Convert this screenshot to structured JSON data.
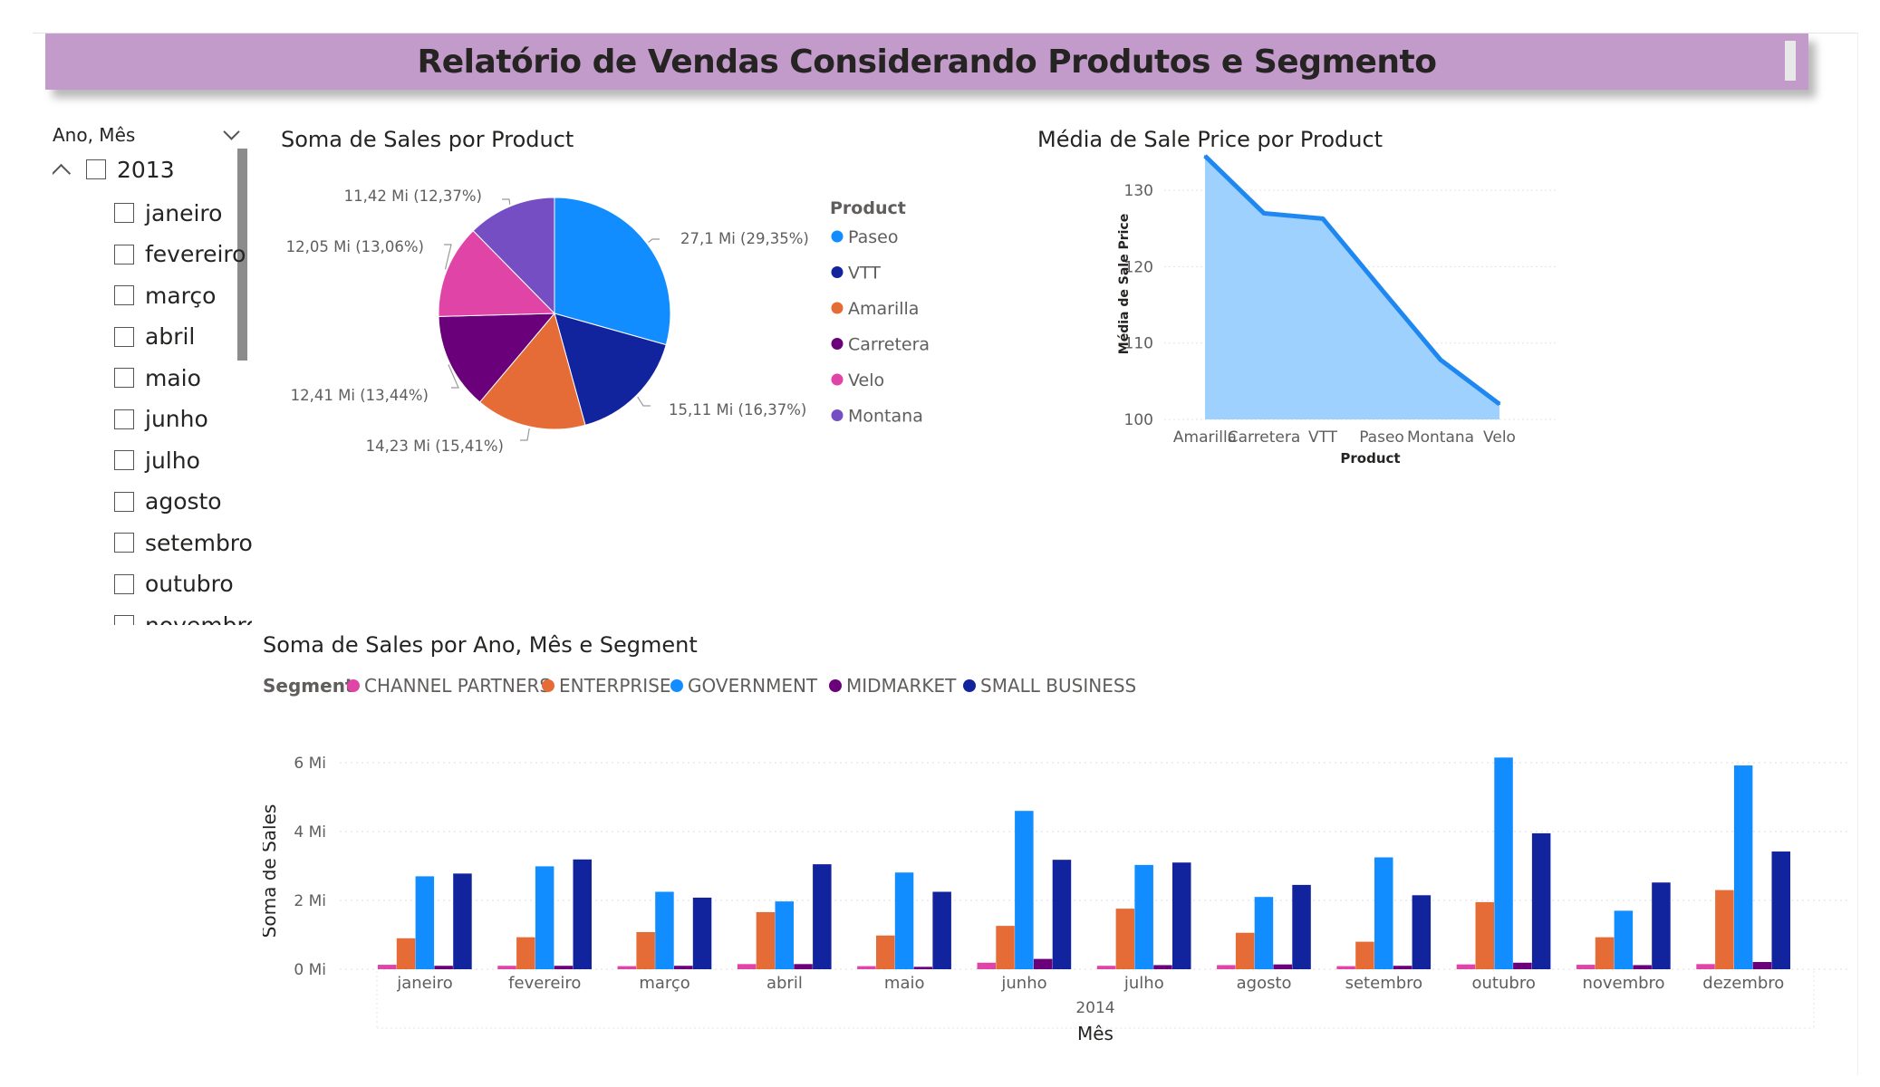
{
  "report_title": "Relatório de Vendas Considerando Produtos e Segmento",
  "colors": {
    "banner": "#c39bcb",
    "paseo": "#118dff",
    "vtt": "#12239e",
    "amarilla": "#e66c37",
    "carretera": "#6b007b",
    "velo": "#e044a7",
    "montana": "#744ec2",
    "area_fill": "#9fd1ff",
    "area_line": "#1e88f0"
  },
  "slicer": {
    "title": "Ano, Mês",
    "year": "2013",
    "months": [
      "janeiro",
      "fevereiro",
      "março",
      "abril",
      "maio",
      "junho",
      "julho",
      "agosto",
      "setembro",
      "outubro",
      "novembro"
    ]
  },
  "pie": {
    "title": "Soma de Sales por Product",
    "legend_title": "Product"
  },
  "area": {
    "title": "Média de Sale Price por Product"
  },
  "bars": {
    "title": "Soma de Sales por Ano, Mês e Segment",
    "legend_title": "Segment",
    "year_label": "2014"
  },
  "chart_data": [
    {
      "type": "pie",
      "title": "Soma de Sales por Product",
      "legend_title": "Product",
      "slices": [
        {
          "name": "Paseo",
          "value": 27.1,
          "label": "27,1 Mi (29,35%)",
          "color": "#118dff"
        },
        {
          "name": "VTT",
          "value": 15.11,
          "label": "15,11 Mi (16,37%)",
          "color": "#12239e"
        },
        {
          "name": "Amarilla",
          "value": 14.23,
          "label": "14,23 Mi (15,41%)",
          "color": "#e66c37"
        },
        {
          "name": "Carretera",
          "value": 12.41,
          "label": "12,41 Mi (13,44%)",
          "color": "#6b007b"
        },
        {
          "name": "Velo",
          "value": 12.05,
          "label": "12,05 Mi (13,06%)",
          "color": "#e044a7"
        },
        {
          "name": "Montana",
          "value": 11.42,
          "label": "11,42 Mi (12,37%)",
          "color": "#744ec2"
        }
      ]
    },
    {
      "type": "area",
      "title": "Média de Sale Price por Product",
      "xlabel": "Product",
      "ylabel": "Média de Sale Price",
      "categories": [
        "Amarilla",
        "Carretera",
        "VTT",
        "Paseo",
        "Montana",
        "Velo"
      ],
      "values": [
        134.5,
        127,
        126.3,
        117,
        107.8,
        102
      ],
      "ylim": [
        100,
        135
      ],
      "yticks": [
        100,
        110,
        120,
        130
      ]
    },
    {
      "type": "bar",
      "title": "Soma de Sales por Ano, Mês e Segment",
      "legend_title": "Segment",
      "xlabel": "Mês",
      "ylabel": "Soma de Sales",
      "year": "2014",
      "categories": [
        "janeiro",
        "fevereiro",
        "março",
        "abril",
        "maio",
        "junho",
        "julho",
        "agosto",
        "setembro",
        "outubro",
        "novembro",
        "dezembro"
      ],
      "ylim": [
        0,
        6.5
      ],
      "yticks": [
        {
          "v": 0,
          "label": "0 Mi"
        },
        {
          "v": 2,
          "label": "2 Mi"
        },
        {
          "v": 4,
          "label": "4 Mi"
        },
        {
          "v": 6,
          "label": "6 Mi"
        }
      ],
      "series": [
        {
          "name": "CHANNEL PARTNERS",
          "color": "#e044a7",
          "values": [
            0.13,
            0.1,
            0.09,
            0.15,
            0.09,
            0.19,
            0.1,
            0.12,
            0.09,
            0.14,
            0.13,
            0.15
          ]
        },
        {
          "name": "ENTERPRISE",
          "color": "#e66c37",
          "values": [
            0.9,
            0.93,
            1.08,
            1.66,
            0.98,
            1.26,
            1.76,
            1.06,
            0.8,
            1.95,
            0.93,
            2.3
          ]
        },
        {
          "name": "GOVERNMENT",
          "color": "#118dff",
          "values": [
            2.7,
            2.99,
            2.25,
            1.97,
            2.81,
            4.6,
            3.03,
            2.1,
            3.25,
            6.15,
            1.7,
            5.92
          ]
        },
        {
          "name": "MIDMARKET",
          "color": "#6b007b",
          "values": [
            0.1,
            0.1,
            0.1,
            0.15,
            0.07,
            0.3,
            0.12,
            0.14,
            0.1,
            0.19,
            0.12,
            0.21
          ]
        },
        {
          "name": "SMALL BUSINESS",
          "color": "#12239e",
          "values": [
            2.78,
            3.19,
            2.08,
            3.05,
            2.25,
            3.18,
            3.1,
            2.45,
            2.15,
            3.95,
            2.52,
            3.42
          ]
        }
      ]
    }
  ]
}
